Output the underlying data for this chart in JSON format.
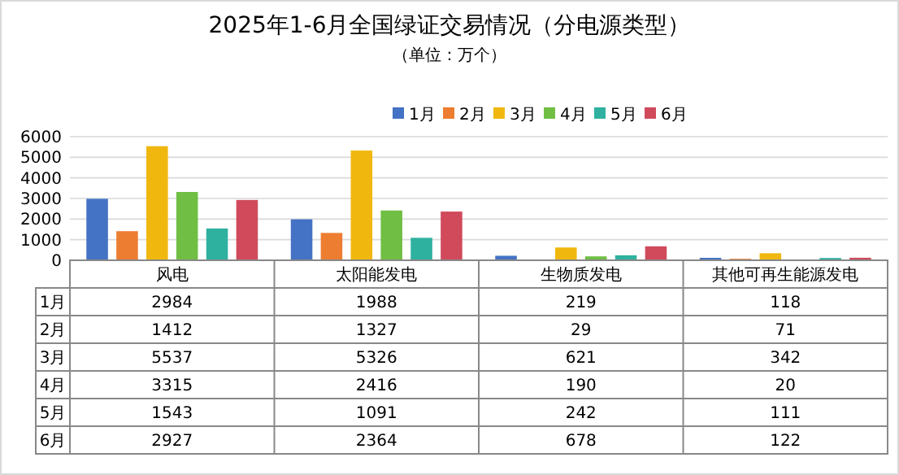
{
  "chart_data": {
    "type": "bar",
    "title": "2025年1-6月全国绿证交易情况（分电源类型）",
    "subtitle": "（单位：万个）",
    "categories": [
      "风电",
      "太阳能发电",
      "生物质发电",
      "其他可再生能源发电"
    ],
    "series": [
      {
        "name": "1月",
        "color": "#4472c4",
        "values": [
          2984,
          1988,
          219,
          118
        ]
      },
      {
        "name": "2月",
        "color": "#ed7d31",
        "values": [
          1412,
          1327,
          29,
          71
        ]
      },
      {
        "name": "3月",
        "color": "#f0b80f",
        "values": [
          5537,
          5326,
          621,
          342
        ]
      },
      {
        "name": "4月",
        "color": "#70bf44",
        "values": [
          3315,
          2416,
          190,
          20
        ]
      },
      {
        "name": "5月",
        "color": "#2fb1a0",
        "values": [
          1543,
          1091,
          242,
          111
        ]
      },
      {
        "name": "6月",
        "color": "#d04a5c",
        "values": [
          2927,
          2364,
          678,
          122
        ]
      }
    ],
    "ylim": [
      0,
      6000
    ],
    "yticks": [
      0,
      1000,
      2000,
      3000,
      4000,
      5000,
      6000
    ],
    "grid": "y",
    "legend": "top",
    "data_labels": true
  }
}
